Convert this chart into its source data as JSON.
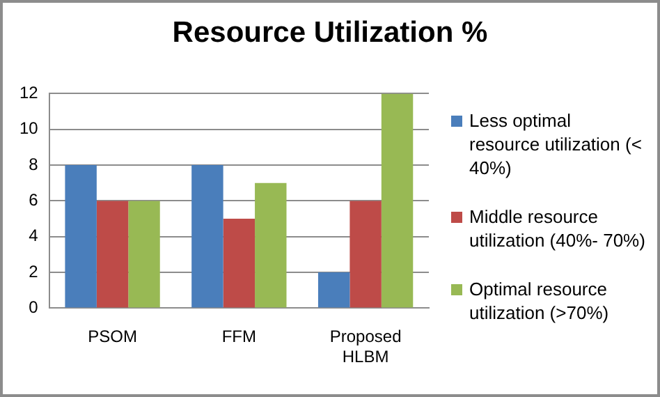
{
  "chart_data": {
    "type": "bar",
    "title": "Resource Utilization %",
    "categories": [
      "PSOM",
      "FFM",
      "Proposed HLBM"
    ],
    "series": [
      {
        "name": "Less optimal resource utilization (< 40%)",
        "color": "#4a7ebb",
        "values": [
          8,
          8,
          2
        ]
      },
      {
        "name": "Middle resource utilization (40%- 70%)",
        "color": "#be4b48",
        "values": [
          6,
          5,
          6
        ]
      },
      {
        "name": "Optimal resource utilization (>70%)",
        "color": "#98b954",
        "values": [
          6,
          7,
          12
        ]
      }
    ],
    "ylim": [
      0,
      12
    ],
    "yticks": [
      0,
      2,
      4,
      6,
      8,
      10,
      12
    ],
    "grid": "y",
    "legend": "right"
  }
}
